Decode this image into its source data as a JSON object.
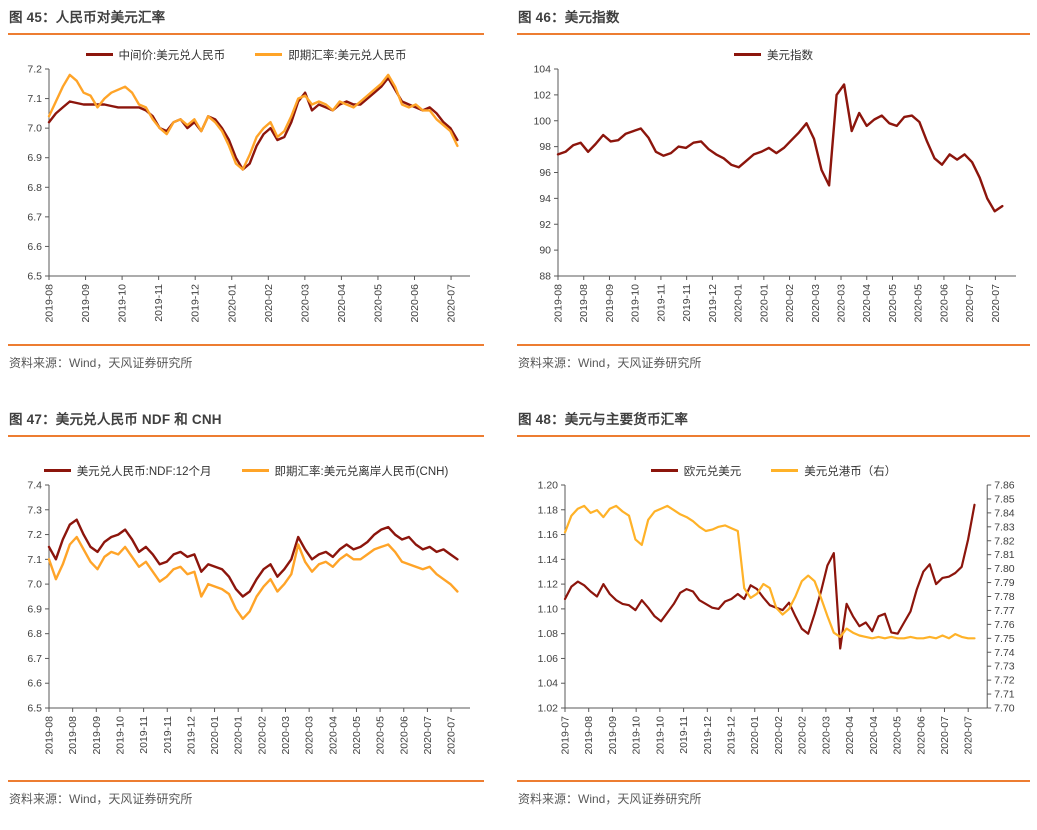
{
  "figures": [
    {
      "title": "图 45：人民币对美元汇率",
      "source": "资料来源：Wind，天风证券研究所"
    },
    {
      "title": "图 46：美元指数",
      "source": "资料来源：Wind，天风证券研究所"
    },
    {
      "title": "图 47：美元兑人民币 NDF 和 CNH",
      "source": "资料来源：Wind，天风证券研究所"
    },
    {
      "title": "图 48：美元与主要货币汇率",
      "source": "资料来源：Wind，天风证券研究所"
    }
  ],
  "colors": {
    "dark_red": "#8C150C",
    "orange": "#FFA428",
    "orange_bright": "#FFB228",
    "rule_orange": "#ED7D31"
  },
  "chart_data": [
    {
      "type": "line",
      "title": "人民币对美元汇率",
      "legend_position": "top-center",
      "grid": false,
      "line_width": 2.4,
      "x_labels": [
        "2019-08",
        "2019-09",
        "2019-10",
        "2019-11",
        "2019-12",
        "2020-01",
        "2020-02",
        "2020-03",
        "2020-04",
        "2020-05",
        "2020-06",
        "2020-07"
      ],
      "y_axis": {
        "min": 6.5,
        "max": 7.2,
        "step": 0.1,
        "decimals": 1
      },
      "series": [
        {
          "name": "中间价:美元兑人民币",
          "color": "#8C150C",
          "axis": "left",
          "values": [
            7.02,
            7.05,
            7.07,
            7.09,
            7.085,
            7.08,
            7.08,
            7.08,
            7.08,
            7.075,
            7.07,
            7.07,
            7.07,
            7.07,
            7.06,
            7.04,
            7.0,
            6.99,
            7.02,
            7.03,
            7.0,
            7.02,
            6.99,
            7.04,
            7.03,
            7.0,
            6.96,
            6.9,
            6.86,
            6.88,
            6.94,
            6.98,
            7.0,
            6.96,
            6.97,
            7.02,
            7.09,
            7.12,
            7.06,
            7.08,
            7.07,
            7.06,
            7.08,
            7.09,
            7.08,
            7.08,
            7.1,
            7.12,
            7.14,
            7.17,
            7.13,
            7.09,
            7.08,
            7.07,
            7.06,
            7.07,
            7.05,
            7.02,
            7.0,
            6.96
          ]
        },
        {
          "name": "即期汇率:美元兑人民币",
          "color": "#FFA428",
          "axis": "left",
          "values": [
            7.04,
            7.09,
            7.14,
            7.18,
            7.16,
            7.12,
            7.11,
            7.07,
            7.1,
            7.12,
            7.13,
            7.14,
            7.12,
            7.08,
            7.07,
            7.03,
            7.0,
            6.98,
            7.02,
            7.03,
            7.01,
            7.03,
            6.99,
            7.04,
            7.02,
            6.99,
            6.94,
            6.88,
            6.86,
            6.91,
            6.97,
            7.0,
            7.02,
            6.97,
            6.99,
            7.04,
            7.1,
            7.11,
            7.08,
            7.09,
            7.08,
            7.06,
            7.09,
            7.08,
            7.07,
            7.09,
            7.11,
            7.13,
            7.15,
            7.18,
            7.14,
            7.08,
            7.07,
            7.08,
            7.06,
            7.06,
            7.03,
            7.01,
            6.99,
            6.94
          ]
        }
      ]
    },
    {
      "type": "line",
      "title": "美元指数",
      "legend_position": "top-center",
      "grid": false,
      "line_width": 2.4,
      "x_labels": [
        "2019-08",
        "2019-08",
        "2019-09",
        "2019-10",
        "2019-11",
        "2019-11",
        "2019-12",
        "2020-01",
        "2020-01",
        "2020-02",
        "2020-03",
        "2020-03",
        "2020-04",
        "2020-05",
        "2020-05",
        "2020-06",
        "2020-07",
        "2020-07"
      ],
      "y_axis": {
        "min": 88,
        "max": 104,
        "step": 2,
        "decimals": 0
      },
      "series": [
        {
          "name": "美元指数",
          "color": "#8C150C",
          "axis": "left",
          "values": [
            97.4,
            97.6,
            98.1,
            98.3,
            97.6,
            98.2,
            98.9,
            98.4,
            98.5,
            99.0,
            99.2,
            99.4,
            98.7,
            97.6,
            97.3,
            97.5,
            98.0,
            97.9,
            98.3,
            98.4,
            97.8,
            97.4,
            97.1,
            96.6,
            96.4,
            96.9,
            97.4,
            97.6,
            97.9,
            97.5,
            97.9,
            98.5,
            99.1,
            99.8,
            98.6,
            96.2,
            95.0,
            102.0,
            102.8,
            99.2,
            100.6,
            99.6,
            100.1,
            100.4,
            99.8,
            99.6,
            100.3,
            100.4,
            99.9,
            98.4,
            97.1,
            96.6,
            97.4,
            97.0,
            97.4,
            96.8,
            95.6,
            94.0,
            93.0,
            93.4
          ]
        }
      ]
    },
    {
      "type": "line",
      "title": "美元兑人民币 NDF 和 CNH",
      "legend_position": "top-center",
      "grid": false,
      "line_width": 2.4,
      "x_labels": [
        "2019-08",
        "2019-08",
        "2019-09",
        "2019-10",
        "2019-11",
        "2019-11",
        "2019-12",
        "2020-01",
        "2020-01",
        "2020-02",
        "2020-03",
        "2020-03",
        "2020-04",
        "2020-05",
        "2020-05",
        "2020-06",
        "2020-07",
        "2020-07"
      ],
      "y_axis": {
        "min": 6.5,
        "max": 7.4,
        "step": 0.1,
        "decimals": 1
      },
      "series": [
        {
          "name": "美元兑人民币:NDF:12个月",
          "color": "#8C150C",
          "axis": "left",
          "values": [
            7.15,
            7.1,
            7.18,
            7.24,
            7.26,
            7.2,
            7.15,
            7.13,
            7.17,
            7.19,
            7.2,
            7.22,
            7.18,
            7.13,
            7.15,
            7.12,
            7.08,
            7.09,
            7.12,
            7.13,
            7.11,
            7.12,
            7.05,
            7.08,
            7.07,
            7.06,
            7.03,
            6.98,
            6.95,
            6.97,
            7.02,
            7.06,
            7.08,
            7.03,
            7.06,
            7.1,
            7.19,
            7.14,
            7.1,
            7.12,
            7.13,
            7.11,
            7.14,
            7.16,
            7.14,
            7.15,
            7.17,
            7.2,
            7.22,
            7.23,
            7.2,
            7.18,
            7.19,
            7.16,
            7.14,
            7.15,
            7.13,
            7.14,
            7.12,
            7.1
          ]
        },
        {
          "name": "即期汇率:美元兑离岸人民币(CNH)",
          "color": "#FFA428",
          "axis": "left",
          "values": [
            7.1,
            7.02,
            7.08,
            7.16,
            7.19,
            7.14,
            7.09,
            7.06,
            7.11,
            7.13,
            7.12,
            7.15,
            7.11,
            7.07,
            7.09,
            7.05,
            7.01,
            7.03,
            7.06,
            7.07,
            7.04,
            7.05,
            6.95,
            7.0,
            6.99,
            6.98,
            6.96,
            6.9,
            6.86,
            6.89,
            6.95,
            6.99,
            7.02,
            6.97,
            7.0,
            7.04,
            7.16,
            7.09,
            7.05,
            7.08,
            7.09,
            7.07,
            7.1,
            7.12,
            7.1,
            7.1,
            7.12,
            7.14,
            7.15,
            7.16,
            7.13,
            7.09,
            7.08,
            7.07,
            7.06,
            7.07,
            7.04,
            7.02,
            7.0,
            6.97
          ]
        }
      ]
    },
    {
      "type": "line",
      "title": "美元与主要货币汇率",
      "legend_position": "top-center",
      "grid": false,
      "line_width": 2.2,
      "x_labels": [
        "2019-07",
        "2019-08",
        "2019-09",
        "2019-10",
        "2019-10",
        "2019-11",
        "2019-12",
        "2019-12",
        "2020-01",
        "2020-02",
        "2020-02",
        "2020-03",
        "2020-04",
        "2020-04",
        "2020-05",
        "2020-06",
        "2020-07",
        "2020-07"
      ],
      "y_axis": {
        "min": 1.02,
        "max": 1.2,
        "step": 0.02,
        "decimals": 2
      },
      "y_axis_right": {
        "min": 7.7,
        "max": 7.86,
        "step": 0.01,
        "decimals": 2
      },
      "series": [
        {
          "name": "欧元兑美元",
          "color": "#8C150C",
          "axis": "left",
          "values": [
            1.108,
            1.118,
            1.122,
            1.119,
            1.114,
            1.11,
            1.12,
            1.112,
            1.107,
            1.104,
            1.103,
            1.099,
            1.107,
            1.101,
            1.094,
            1.09,
            1.097,
            1.104,
            1.113,
            1.116,
            1.114,
            1.107,
            1.104,
            1.101,
            1.1,
            1.106,
            1.108,
            1.112,
            1.108,
            1.119,
            1.116,
            1.109,
            1.103,
            1.101,
            1.099,
            1.105,
            1.094,
            1.084,
            1.08,
            1.096,
            1.114,
            1.135,
            1.145,
            1.068,
            1.104,
            1.094,
            1.086,
            1.089,
            1.082,
            1.094,
            1.096,
            1.081,
            1.08,
            1.089,
            1.098,
            1.116,
            1.13,
            1.136,
            1.12,
            1.125,
            1.126,
            1.129,
            1.134,
            1.156,
            1.184
          ]
        },
        {
          "name": "美元兑港币（右）",
          "color": "#FFB228",
          "axis": "right",
          "values": [
            7.826,
            7.838,
            7.843,
            7.845,
            7.84,
            7.842,
            7.837,
            7.843,
            7.845,
            7.841,
            7.838,
            7.821,
            7.817,
            7.835,
            7.841,
            7.843,
            7.845,
            7.842,
            7.839,
            7.837,
            7.834,
            7.83,
            7.827,
            7.828,
            7.83,
            7.831,
            7.829,
            7.827,
            7.786,
            7.779,
            7.782,
            7.789,
            7.786,
            7.772,
            7.767,
            7.771,
            7.78,
            7.791,
            7.795,
            7.791,
            7.779,
            7.766,
            7.754,
            7.751,
            7.757,
            7.754,
            7.752,
            7.751,
            7.75,
            7.751,
            7.75,
            7.751,
            7.75,
            7.75,
            7.751,
            7.75,
            7.75,
            7.751,
            7.75,
            7.752,
            7.75,
            7.753,
            7.751,
            7.75,
            7.75
          ]
        }
      ]
    }
  ]
}
